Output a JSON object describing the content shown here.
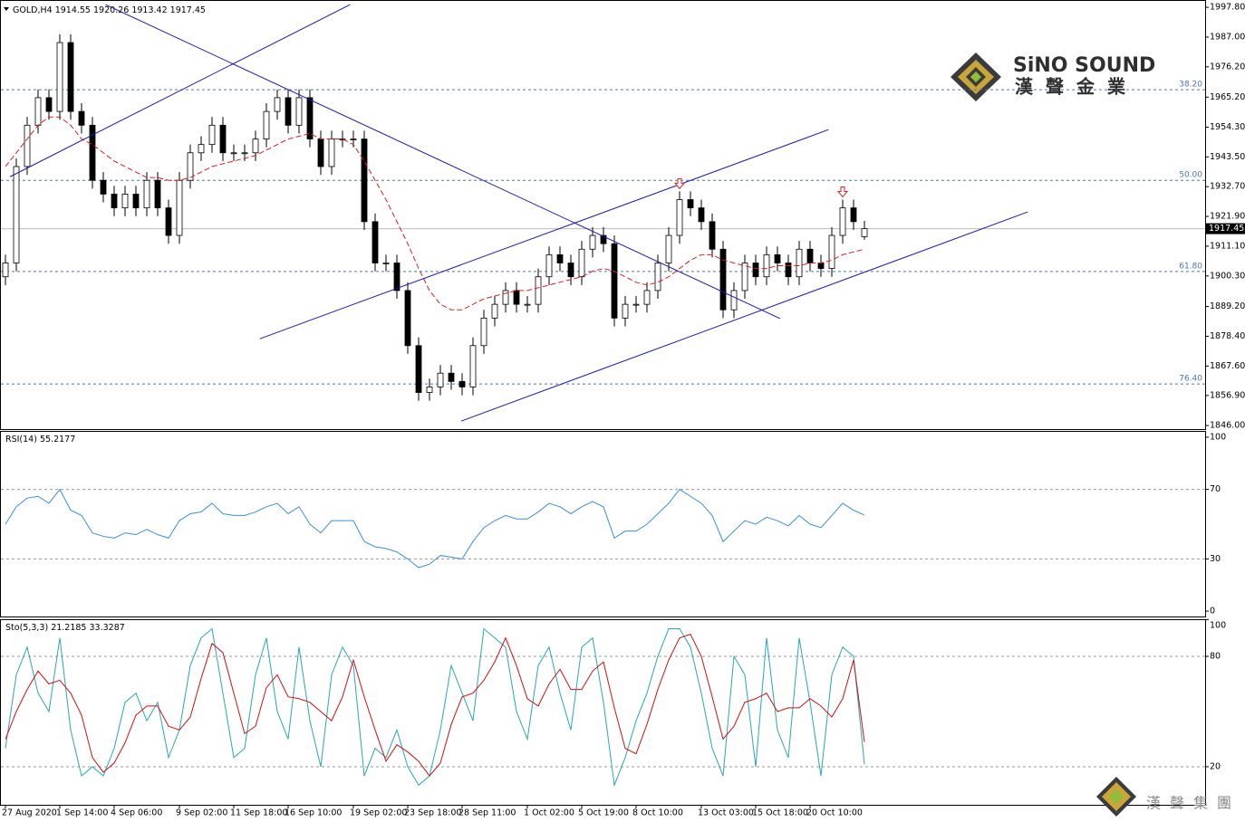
{
  "chart_data": [
    {
      "type": "candlestick",
      "title": "GOLD,H4",
      "categories": [
        "27 Aug 2020",
        null,
        null,
        null,
        null,
        "1 Sep 14:00",
        null,
        null,
        null,
        null,
        "4 Sep 06:00",
        null,
        null,
        null,
        null,
        null,
        "9 Sep 02:00",
        null,
        null,
        null,
        null,
        "11 Sep 18:00",
        null,
        null,
        null,
        null,
        "16 Sep 10:00",
        null,
        null,
        null,
        null,
        null,
        "19 Sep 02:00",
        null,
        null,
        null,
        null,
        "23 Sep 18:00",
        null,
        null,
        null,
        null,
        "28 Sep 11:00",
        null,
        null,
        null,
        null,
        null,
        "1 Oct 02:00",
        null,
        null,
        null,
        null,
        "5 Oct 19:00",
        null,
        null,
        null,
        null,
        "8 Oct 10:00",
        null,
        null,
        null,
        null,
        null,
        "13 Oct 03:00",
        null,
        null,
        null,
        null,
        "15 Oct 18:00",
        null,
        null,
        null,
        null,
        "20 Oct 10:00",
        null,
        null,
        null,
        null,
        null
      ],
      "open": [
        1900,
        1905,
        1940,
        1955,
        1965,
        1960,
        1985,
        1960,
        1955,
        1935,
        1930,
        1925,
        1930,
        1925,
        1935,
        1925,
        1915,
        1935,
        1945,
        1948,
        1955,
        1945,
        1945,
        1945,
        1950,
        1960,
        1965,
        1955,
        1965,
        1950,
        1940,
        1950,
        1950,
        1950,
        1920,
        1905,
        1905,
        1895,
        1875,
        1858,
        1860,
        1865,
        1862,
        1860,
        1875,
        1885,
        1890,
        1895,
        1890,
        1890,
        1900,
        1908,
        1905,
        1900,
        1910,
        1915,
        1912,
        1885,
        1890,
        1890,
        1895,
        1905,
        1915,
        1928,
        1925,
        1920,
        1910,
        1888,
        1895,
        1905,
        1900,
        1908,
        1905,
        1900,
        1910,
        1905,
        1903,
        1915,
        1925,
        1914.55
      ],
      "high": [
        1908,
        1943,
        1958,
        1968,
        1968,
        1988,
        1988,
        1963,
        1958,
        1938,
        1933,
        1933,
        1933,
        1938,
        1938,
        1928,
        1938,
        1948,
        1951,
        1958,
        1958,
        1948,
        1948,
        1953,
        1963,
        1968,
        1968,
        1968,
        1968,
        1953,
        1953,
        1953,
        1953,
        1953,
        1923,
        1908,
        1908,
        1898,
        1878,
        1863,
        1868,
        1868,
        1865,
        1878,
        1888,
        1893,
        1898,
        1898,
        1893,
        1903,
        1911,
        1911,
        1908,
        1913,
        1918,
        1918,
        1915,
        1893,
        1893,
        1898,
        1908,
        1918,
        1931,
        1931,
        1928,
        1923,
        1913,
        1898,
        1908,
        1908,
        1911,
        1911,
        1908,
        1913,
        1913,
        1908,
        1918,
        1928,
        1928,
        1920.26
      ],
      "low": [
        1897,
        1902,
        1937,
        1952,
        1957,
        1957,
        1957,
        1952,
        1932,
        1927,
        1922,
        1922,
        1922,
        1922,
        1922,
        1912,
        1912,
        1932,
        1942,
        1945,
        1942,
        1942,
        1942,
        1942,
        1947,
        1957,
        1952,
        1952,
        1947,
        1937,
        1937,
        1947,
        1947,
        1917,
        1902,
        1902,
        1892,
        1872,
        1855,
        1855,
        1857,
        1859,
        1857,
        1857,
        1872,
        1882,
        1887,
        1887,
        1887,
        1887,
        1897,
        1902,
        1897,
        1897,
        1907,
        1909,
        1882,
        1882,
        1887,
        1887,
        1892,
        1902,
        1912,
        1922,
        1917,
        1907,
        1885,
        1885,
        1892,
        1897,
        1897,
        1902,
        1897,
        1897,
        1902,
        1900,
        1900,
        1912,
        1917,
        1913.42
      ],
      "close": [
        1905,
        1940,
        1955,
        1965,
        1960,
        1985,
        1960,
        1955,
        1935,
        1930,
        1925,
        1930,
        1925,
        1935,
        1925,
        1915,
        1935,
        1945,
        1948,
        1955,
        1945,
        1945,
        1945,
        1950,
        1960,
        1965,
        1955,
        1965,
        1950,
        1940,
        1950,
        1950,
        1950,
        1920,
        1905,
        1905,
        1895,
        1875,
        1858,
        1860,
        1865,
        1862,
        1860,
        1875,
        1885,
        1890,
        1895,
        1890,
        1890,
        1900,
        1908,
        1905,
        1900,
        1910,
        1915,
        1912,
        1885,
        1890,
        1890,
        1895,
        1905,
        1915,
        1928,
        1925,
        1920,
        1910,
        1888,
        1895,
        1905,
        1900,
        1908,
        1905,
        1900,
        1910,
        1905,
        1903,
        1915,
        1925,
        1920,
        1917.45
      ],
      "up_color": "#ffffff",
      "down_color": "#000000",
      "ma": {
        "color": "#d62020",
        "values": [
          1940,
          1945,
          1950,
          1955,
          1958,
          1958,
          1955,
          1950,
          1948,
          1945,
          1942,
          1940,
          1938,
          1936,
          1936,
          1935,
          1935,
          1936,
          1938,
          1940,
          1941,
          1942,
          1943,
          1944,
          1946,
          1948,
          1950,
          1951,
          1952,
          1950,
          1950,
          1950,
          1948,
          1942,
          1935,
          1928,
          1920,
          1912,
          1903,
          1895,
          1890,
          1888,
          1888,
          1890,
          1892,
          1893,
          1894,
          1895,
          1895,
          1896,
          1897,
          1898,
          1899,
          1900,
          1902,
          1903,
          1902,
          1900,
          1898,
          1897,
          1898,
          1900,
          1903,
          1906,
          1908,
          1908,
          1906,
          1905,
          1904,
          1903,
          1903,
          1904,
          1904,
          1904,
          1905,
          1905,
          1906,
          1908,
          1909,
          1910
        ]
      },
      "ylim": [
        1844.7,
        1999.8
      ],
      "yticks": [
        {
          "value": 1846,
          "label": "1846.00"
        },
        {
          "value": 1856.9,
          "label": "1856.90"
        },
        {
          "value": 1867.6,
          "label": "1867.60"
        },
        {
          "value": 1878.4,
          "label": "1878.40"
        },
        {
          "value": 1889.2,
          "label": "1889.20"
        },
        {
          "value": 1900.3,
          "label": "1900.30"
        },
        {
          "value": 1911.1,
          "label": "1911.10"
        },
        {
          "value": 1921.9,
          "label": "1921.90"
        },
        {
          "value": 1932.7,
          "label": "1932.70"
        },
        {
          "value": 1943.5,
          "label": "1943.50"
        },
        {
          "value": 1954.3,
          "label": "1954.30"
        },
        {
          "value": 1965.2,
          "label": "1965.20"
        },
        {
          "value": 1976.2,
          "label": "1976.20"
        },
        {
          "value": 1987,
          "label": "1987.00"
        },
        {
          "value": 1997.8,
          "label": "1997.80"
        }
      ],
      "fib_levels": [
        {
          "value": 1967.9,
          "label": "38.20"
        },
        {
          "value": 1935.0,
          "label": "50.00"
        },
        {
          "value": 1901.9,
          "label": "61.80"
        },
        {
          "value": 1861.1,
          "label": "76.40"
        }
      ],
      "fib_color": "#4a78b0",
      "trendlines": [
        [
          [
            0.42,
            1936.3
          ],
          [
            31.7,
            1998.8
          ]
        ],
        [
          [
            9.2,
            1998.8
          ],
          [
            71.25,
            1884.8
          ]
        ],
        [
          [
            23.4,
            1877.5
          ],
          [
            75.7,
            1953.4
          ]
        ],
        [
          [
            41.9,
            1847.6
          ],
          [
            94,
            1923.5
          ]
        ]
      ],
      "trendline_color": "#1a1aa8",
      "arrows": [
        62,
        77
      ],
      "arrow_color": "#e02020"
    },
    {
      "type": "line",
      "series": [
        {
          "name": "RSI(14)",
          "color": "#3a8fd8",
          "values": [
            50,
            60,
            65,
            66,
            62,
            70,
            58,
            55,
            45,
            43,
            42,
            45,
            44,
            47,
            44,
            42,
            52,
            56,
            57,
            62,
            56,
            55,
            55,
            57,
            60,
            62,
            56,
            60,
            50,
            45,
            52,
            52,
            52,
            40,
            37,
            36,
            34,
            30,
            25,
            27,
            32,
            31,
            30,
            40,
            48,
            52,
            55,
            53,
            53,
            57,
            62,
            60,
            56,
            60,
            63,
            60,
            42,
            46,
            46,
            50,
            56,
            62,
            70,
            66,
            62,
            55,
            40,
            46,
            52,
            50,
            54,
            52,
            49,
            55,
            50,
            48,
            55,
            62,
            58,
            55.2177
          ]
        }
      ],
      "ylim": [
        -3.1,
        103.1
      ],
      "yticks": [
        0,
        30,
        70,
        100
      ],
      "levels": [
        30,
        70
      ]
    },
    {
      "type": "line",
      "series": [
        {
          "name": "Sto(5,3,3)",
          "color": "#2aa6b5",
          "values": [
            30,
            70,
            85,
            60,
            50,
            90,
            40,
            15,
            20,
            15,
            30,
            55,
            60,
            45,
            55,
            25,
            40,
            75,
            90,
            95,
            60,
            25,
            30,
            70,
            90,
            50,
            35,
            85,
            45,
            20,
            70,
            85,
            75,
            15,
            30,
            25,
            40,
            20,
            10,
            15,
            40,
            75,
            60,
            45,
            95,
            90,
            85,
            50,
            35,
            75,
            85,
            60,
            40,
            85,
            90,
            55,
            10,
            25,
            45,
            60,
            80,
            95,
            95,
            85,
            60,
            30,
            15,
            80,
            70,
            20,
            90,
            40,
            25,
            90,
            55,
            15,
            70,
            85,
            80,
            21.2185
          ]
        },
        {
          "color": "#d01010",
          "values": [
            35,
            50,
            62,
            72,
            65,
            67,
            60,
            48,
            25,
            17,
            22,
            33,
            48,
            53,
            53,
            42,
            40,
            47,
            68,
            87,
            82,
            60,
            38,
            42,
            63,
            70,
            58,
            57,
            55,
            50,
            45,
            58,
            78,
            58,
            40,
            23,
            32,
            28,
            23,
            15,
            22,
            43,
            58,
            60,
            67,
            77,
            90,
            75,
            57,
            53,
            65,
            73,
            62,
            62,
            72,
            77,
            52,
            30,
            27,
            43,
            62,
            78,
            90,
            92,
            80,
            58,
            35,
            42,
            55,
            57,
            60,
            50,
            52,
            52,
            57,
            53,
            47,
            57,
            78,
            33.3287
          ]
        }
      ],
      "ylim": [
        -0.7,
        99.7
      ],
      "yticks": [
        20,
        80,
        100
      ],
      "levels": [
        20,
        80
      ]
    }
  ],
  "watermark": {
    "name": "SiNO SOUND",
    "chinese": "漢聲金業",
    "footer": "漢聲集團"
  }
}
